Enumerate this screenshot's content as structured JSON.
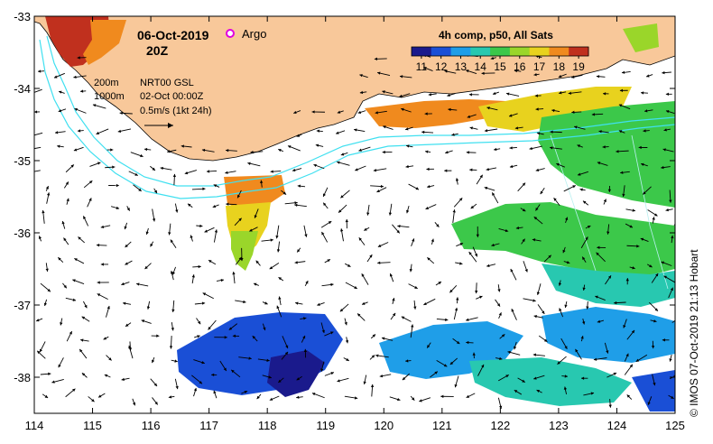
{
  "header": {
    "date": "06-Oct-2019",
    "time": "20Z",
    "argo_label": "Argo"
  },
  "legend": {
    "title": "4h comp, p50, All Sats",
    "ticks": [
      "11",
      "12",
      "13",
      "14",
      "15",
      "16",
      "17",
      "18",
      "19"
    ],
    "colors": [
      "#1a1a8c",
      "#1a4fd6",
      "#1f9ee8",
      "#28c8b0",
      "#3cc84a",
      "#9ad62a",
      "#e8d21e",
      "#f08a1e",
      "#c0301e"
    ]
  },
  "annotations": {
    "iso_200": "200m",
    "iso_1000": "1000m",
    "product": "NRT00 GSL",
    "ref_time": "02-Oct 00:00Z",
    "arrow_scale": "0.5m/s (1kt 24h)"
  },
  "axes": {
    "x_ticks": [
      "114",
      "115",
      "116",
      "117",
      "118",
      "119",
      "120",
      "121",
      "122",
      "123",
      "124",
      "125"
    ],
    "y_ticks": [
      "-33",
      "-34",
      "-35",
      "-36",
      "-37",
      "-38"
    ]
  },
  "copyright": "© IMOS 07-Oct-2019 21:13 Hobart",
  "colors": {
    "land": "#f8c89a",
    "isobath": "#40e0f0",
    "argo": "#e000e0"
  }
}
